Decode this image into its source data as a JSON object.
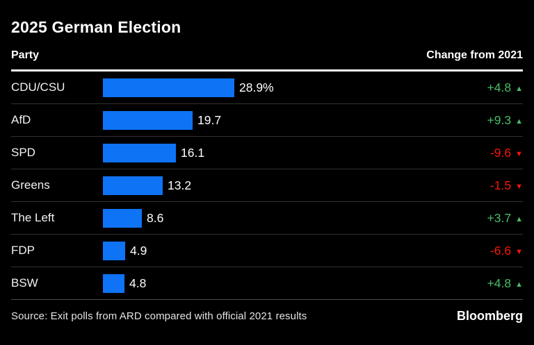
{
  "title": "2025 German Election",
  "table": {
    "header": {
      "party": "Party",
      "change": "Change from 2021"
    }
  },
  "footer": {
    "source": "Source: Exit polls from ARD compared with official 2021 results",
    "brand": "Bloomberg"
  },
  "icons": {
    "up_arrow": "▲",
    "down_arrow": "▼"
  },
  "colors": {
    "background": "#000000",
    "bar_blue": "#0E73F5",
    "up_green": "#49BD67",
    "down_red": "#F41706",
    "divider": "#323232",
    "header_rule": "#FFFFFF"
  },
  "chart_data": {
    "type": "bar",
    "orientation": "horizontal",
    "title": "2025 German Election",
    "categories": [
      "CDU/CSU",
      "AfD",
      "SPD",
      "Greens",
      "The Left",
      "FDP",
      "BSW"
    ],
    "values": [
      28.9,
      19.7,
      16.1,
      13.2,
      8.6,
      4.9,
      4.8
    ],
    "value_labels": [
      "28.9%",
      "19.7",
      "16.1",
      "13.2",
      "8.6",
      "4.9",
      "4.8"
    ],
    "changes": [
      4.8,
      9.3,
      -9.6,
      -1.5,
      3.7,
      -6.6,
      4.8
    ],
    "change_labels": [
      "+4.8",
      "+9.3",
      "-9.6",
      "-1.5",
      "+3.7",
      "-6.6",
      "+4.8"
    ],
    "change_directions": [
      "up",
      "up",
      "down",
      "down",
      "up",
      "down",
      "up"
    ],
    "xlabel": "",
    "ylabel": "",
    "xlim": [
      0,
      30
    ],
    "grid": false,
    "legend": false
  }
}
